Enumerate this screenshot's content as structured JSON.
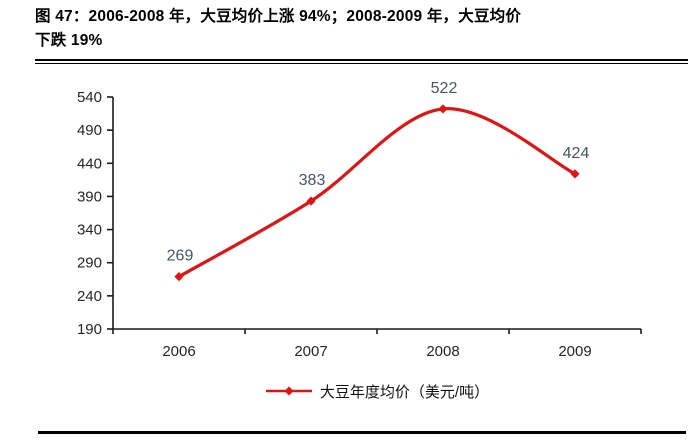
{
  "figure": {
    "title_line1": "图 47：2006-2008 年，大豆均价上涨 94%；2008-2009 年，大豆均价",
    "title_line2": "下跌 19%"
  },
  "chart_data": {
    "type": "line",
    "title": "图 47：2006-2008 年，大豆均价上涨 94%；2008-2009 年，大豆均价下跌 19%",
    "categories": [
      "2006",
      "2007",
      "2008",
      "2009"
    ],
    "series": [
      {
        "name": "大豆年度均价（美元/吨）",
        "values": [
          269,
          383,
          522,
          424
        ]
      }
    ],
    "data_labels": [
      "269",
      "383",
      "522",
      "424"
    ],
    "xlabel": "",
    "ylabel": "",
    "ylim": [
      190,
      540
    ],
    "yticks": [
      190,
      240,
      290,
      340,
      390,
      440,
      490,
      540
    ],
    "grid": false,
    "smooth": true,
    "marker": "diamond",
    "legend_position": "bottom",
    "line_color": "#e11414",
    "marker_color": "#e11414",
    "data_label_color": "#44546a",
    "axis_color": "#1a1a1a",
    "tick_label_color": "#262626"
  }
}
